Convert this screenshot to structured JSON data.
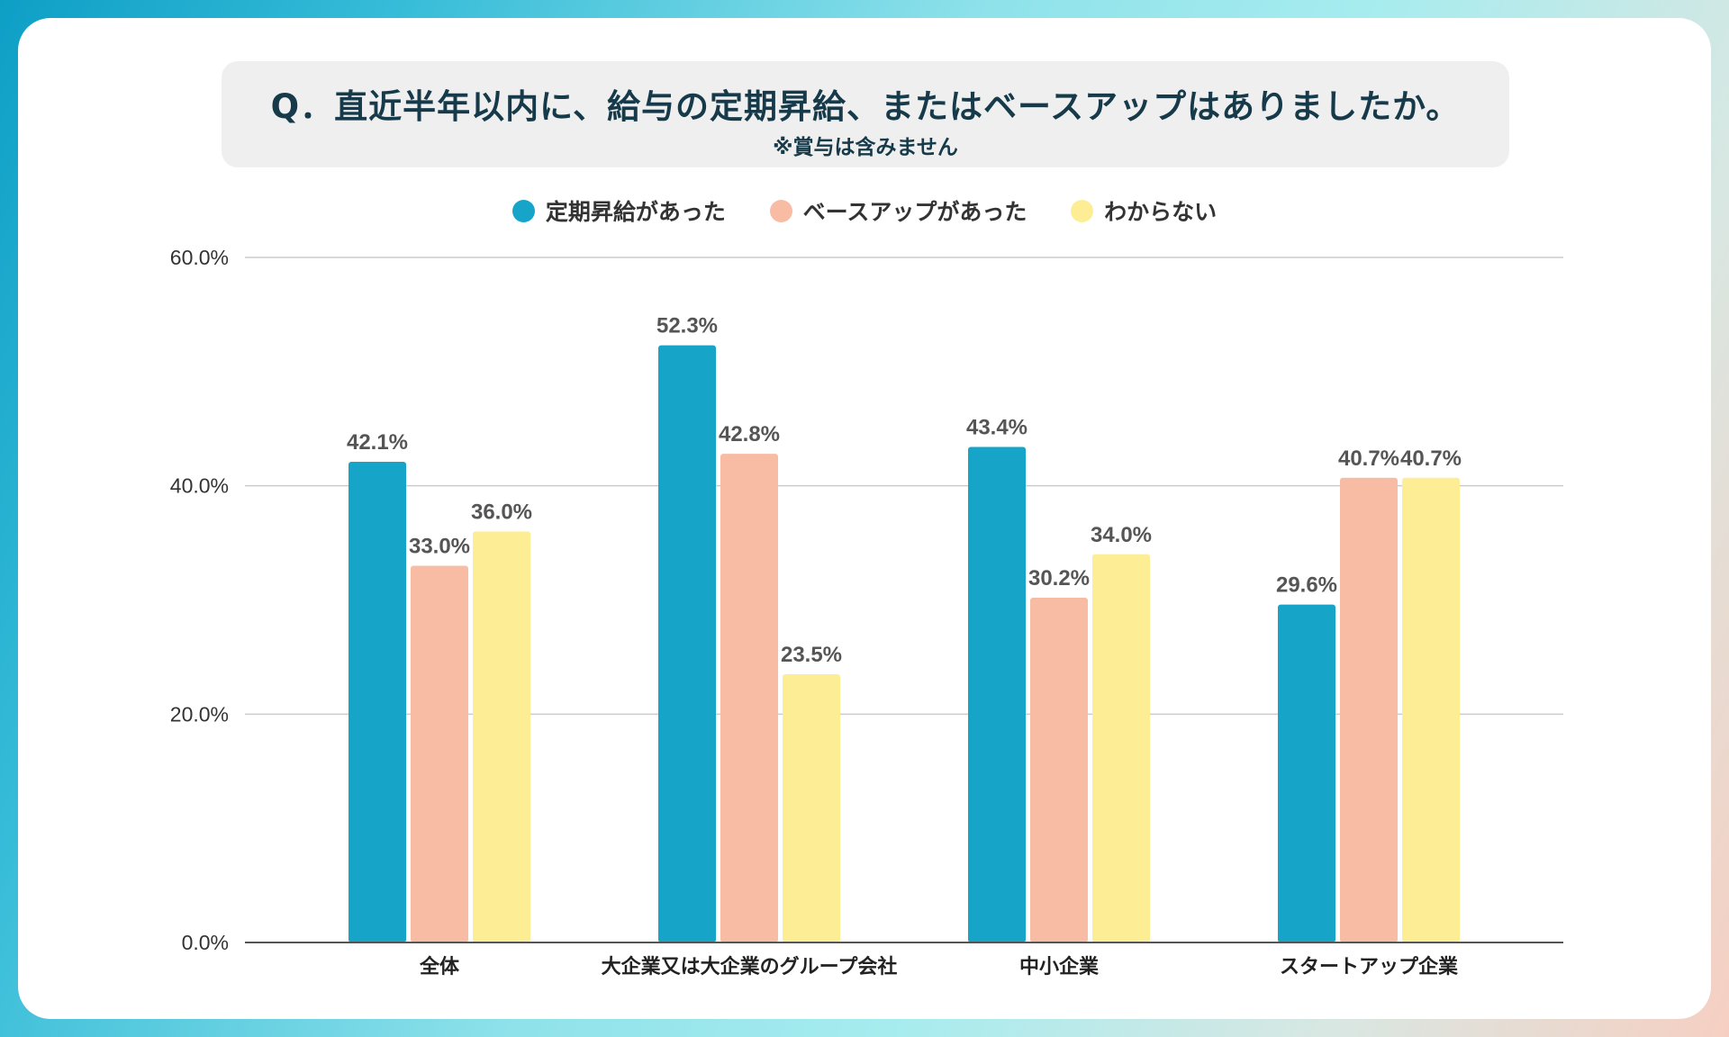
{
  "title": "Q．直近半年以内に、給与の定期昇給、またはベースアップはありましたか。",
  "subtitle": "※賞与は含みません",
  "colors": {
    "series1": "#16a5c9",
    "series2": "#f8bca5",
    "series3": "#fdee96",
    "grid": "#cccccc",
    "axis": "#555555"
  },
  "chart_data": {
    "type": "bar",
    "title": "Q．直近半年以内に、給与の定期昇給、またはベースアップはありましたか。",
    "subtitle": "※賞与は含みません",
    "xlabel": "",
    "ylabel": "",
    "ylim": [
      0,
      60
    ],
    "yticks": [
      "0.0%",
      "20.0%",
      "40.0%",
      "60.0%"
    ],
    "ytick_values": [
      0,
      20,
      40,
      60
    ],
    "grid": true,
    "legend_position": "top",
    "categories": [
      "全体",
      "大企業又は大企業のグループ会社",
      "中小企業",
      "スタートアップ企業"
    ],
    "series": [
      {
        "name": "定期昇給があった",
        "values": [
          42.1,
          52.3,
          43.4,
          29.6
        ],
        "labels": [
          "42.1%",
          "52.3%",
          "43.4%",
          "29.6%"
        ]
      },
      {
        "name": "ベースアップがあった",
        "values": [
          33.0,
          42.8,
          30.2,
          40.7
        ],
        "labels": [
          "33.0%",
          "42.8%",
          "30.2%",
          "40.7%"
        ]
      },
      {
        "name": "わからない",
        "values": [
          36.0,
          23.5,
          34.0,
          40.7
        ],
        "labels": [
          "36.0%",
          "23.5%",
          "34.0%",
          "40.7%"
        ]
      }
    ]
  }
}
